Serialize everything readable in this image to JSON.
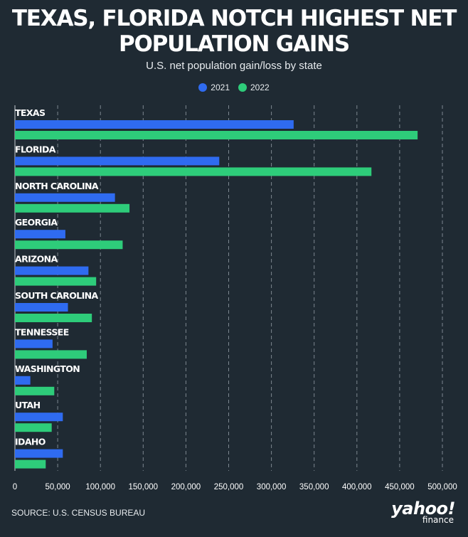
{
  "chart_data": {
    "type": "bar",
    "orientation": "horizontal",
    "title": "TEXAS, FLORIDA NOTCH HIGHEST NET\nPOPULATION GAINS",
    "subtitle": "U.S. net population gain/loss by state",
    "categories": [
      "TEXAS",
      "FLORIDA",
      "NORTH CAROLINA",
      "GEORGIA",
      "ARIZONA",
      "SOUTH CAROLINA",
      "TENNESSEE",
      "WASHINGTON",
      "UTAH",
      "IDAHO"
    ],
    "series": [
      {
        "name": "2021",
        "color": "#2f6bf0",
        "values": [
          326000,
          239000,
          117000,
          59000,
          86000,
          62000,
          44000,
          18000,
          56000,
          56000
        ]
      },
      {
        "name": "2022",
        "color": "#2ecc7a",
        "values": [
          471000,
          417000,
          134000,
          126000,
          95000,
          90000,
          84000,
          46000,
          43000,
          36000
        ]
      }
    ],
    "xlim": [
      0,
      500000
    ],
    "xticks": [
      0,
      50000,
      100000,
      150000,
      200000,
      250000,
      300000,
      350000,
      400000,
      450000,
      500000
    ],
    "xtick_labels": [
      "0",
      "50,000",
      "100,000",
      "150,000",
      "200,000",
      "250,000",
      "300,000",
      "350,000",
      "400,000",
      "450,000",
      "500,000"
    ],
    "grid": true,
    "legend_position": "top-center"
  },
  "source": "SOURCE: U.S. CENSUS BUREAU",
  "logo": {
    "brand": "yahoo!",
    "sub": "finance"
  },
  "colors": {
    "background": "#1f2a33",
    "grid": "#7d8790",
    "text": "#ffffff"
  }
}
